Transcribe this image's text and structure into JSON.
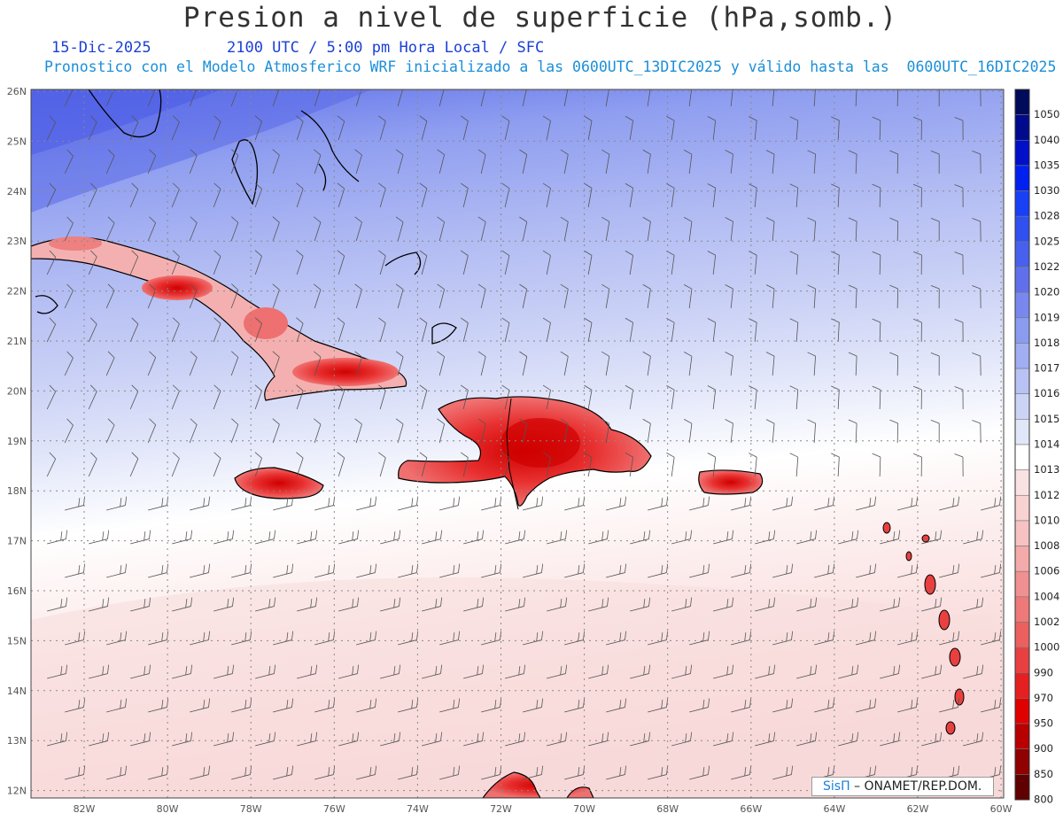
{
  "header": {
    "title": "Presion a nivel de superficie (hPa,somb.)",
    "date": "15-Dic-2025",
    "time": "2100 UTC / 5:00 pm Hora Local / SFC",
    "forecast_note": "Pronostico con el Modelo Atmosferico WRF inicializado a las 0600UTC_13DIC2025 y válido hasta las  0600UTC_16DIC2025"
  },
  "map": {
    "longitude_labels": [
      "82W",
      "80W",
      "78W",
      "76W",
      "74W",
      "72W",
      "70W",
      "68W",
      "66W",
      "64W",
      "62W",
      "60W"
    ],
    "latitude_labels": [
      "26N",
      "25N",
      "24N",
      "23N",
      "22N",
      "21N",
      "20N",
      "19N",
      "18N",
      "17N",
      "16N",
      "15N",
      "14N",
      "13N",
      "12N"
    ]
  },
  "colorbar": {
    "labels": [
      "1050",
      "1040",
      "1035",
      "1030",
      "1028",
      "1025",
      "1022",
      "1020",
      "1019",
      "1018",
      "1017",
      "1016",
      "1015",
      "1014",
      "1013",
      "1012",
      "1010",
      "1008",
      "1006",
      "1004",
      "1002",
      "1000",
      "990",
      "970",
      "950",
      "900",
      "850",
      "800"
    ],
    "colors": [
      "#000a5a",
      "#000a8c",
      "#0010c8",
      "#0020f0",
      "#1840f5",
      "#3050f0",
      "#4860ee",
      "#6070ec",
      "#7888ee",
      "#8a9cf0",
      "#a2aef2",
      "#b8c2f4",
      "#ccd4f6",
      "#e2e6f9",
      "#ffffff",
      "#fbe2e2",
      "#f9d2d2",
      "#f7c2c2",
      "#f4aaaa",
      "#f19090",
      "#ef7878",
      "#ec6060",
      "#e84040",
      "#e52020",
      "#e00000",
      "#b80000",
      "#900000",
      "#600000"
    ]
  },
  "credit": {
    "brand": "SisΠ",
    "org": " – ONAMET/REP.DOM."
  }
}
